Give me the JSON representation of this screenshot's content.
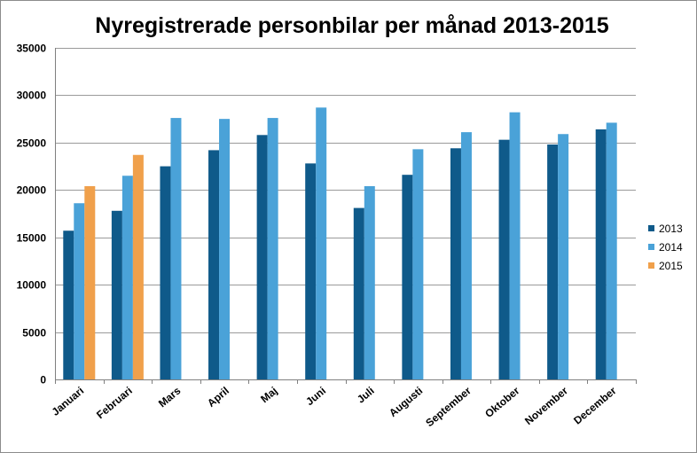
{
  "chart_data": {
    "type": "bar",
    "title": "Nyregistrerade personbilar per månad 2013-2015",
    "xlabel": "",
    "ylabel": "",
    "ylim": [
      0,
      35000
    ],
    "yticks": [
      0,
      5000,
      10000,
      15000,
      20000,
      25000,
      30000,
      35000
    ],
    "grid": true,
    "legend_position": "right",
    "categories": [
      "Januari",
      "Februari",
      "Mars",
      "April",
      "Maj",
      "Juni",
      "Juli",
      "Augusti",
      "September",
      "Oktober",
      "November",
      "December"
    ],
    "series": [
      {
        "name": "2013",
        "color": "#0f5a8a",
        "values": [
          15700,
          17800,
          22500,
          24200,
          25800,
          22800,
          18100,
          21600,
          24400,
          25300,
          24800,
          26400
        ]
      },
      {
        "name": "2014",
        "color": "#4aa2d8",
        "values": [
          18600,
          21500,
          27600,
          27500,
          27600,
          28700,
          20400,
          24300,
          26100,
          28200,
          25900,
          27100
        ]
      },
      {
        "name": "2015",
        "color": "#f0a04b",
        "values": [
          20400,
          23700,
          null,
          null,
          null,
          null,
          null,
          null,
          null,
          null,
          null,
          null
        ]
      }
    ]
  }
}
